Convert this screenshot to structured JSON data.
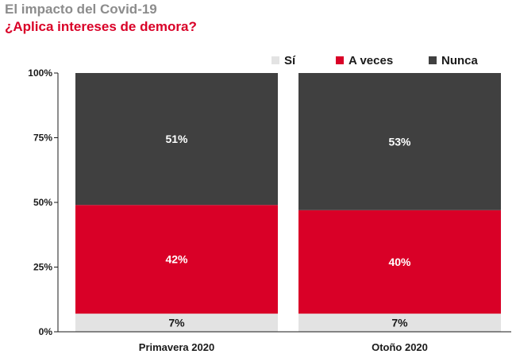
{
  "header": {
    "title": "El impacto del Covid-19",
    "subtitle": "¿Aplica intereses de demora?"
  },
  "colors": {
    "title": "#8c8c8c",
    "subtitle": "#d90027",
    "si": "#e3e3e3",
    "a_veces": "#d90027",
    "nunca": "#404040",
    "axis": "#1a1a1a"
  },
  "chart_data": {
    "type": "bar",
    "stacked": true,
    "title": "El impacto del Covid-19",
    "subtitle": "¿Aplica intereses de demora?",
    "categories": [
      "Primavera 2020",
      "Otoño 2020"
    ],
    "series": [
      {
        "name": "Sí",
        "values": [
          7,
          7
        ],
        "color": "#e3e3e3",
        "labels": [
          "7%",
          "7%"
        ]
      },
      {
        "name": "A veces",
        "values": [
          42,
          40
        ],
        "color": "#d90027",
        "labels": [
          "42%",
          "40%"
        ]
      },
      {
        "name": "Nunca",
        "values": [
          51,
          53
        ],
        "color": "#404040",
        "labels": [
          "51%",
          "53%"
        ]
      }
    ],
    "yticks": [
      0,
      25,
      50,
      75,
      100
    ],
    "ytick_labels": [
      "0%",
      "25%",
      "50%",
      "75%",
      "100%"
    ],
    "ylim": [
      0,
      100
    ],
    "legend_position": "top-right",
    "grid": false,
    "xlabel": "",
    "ylabel": ""
  }
}
